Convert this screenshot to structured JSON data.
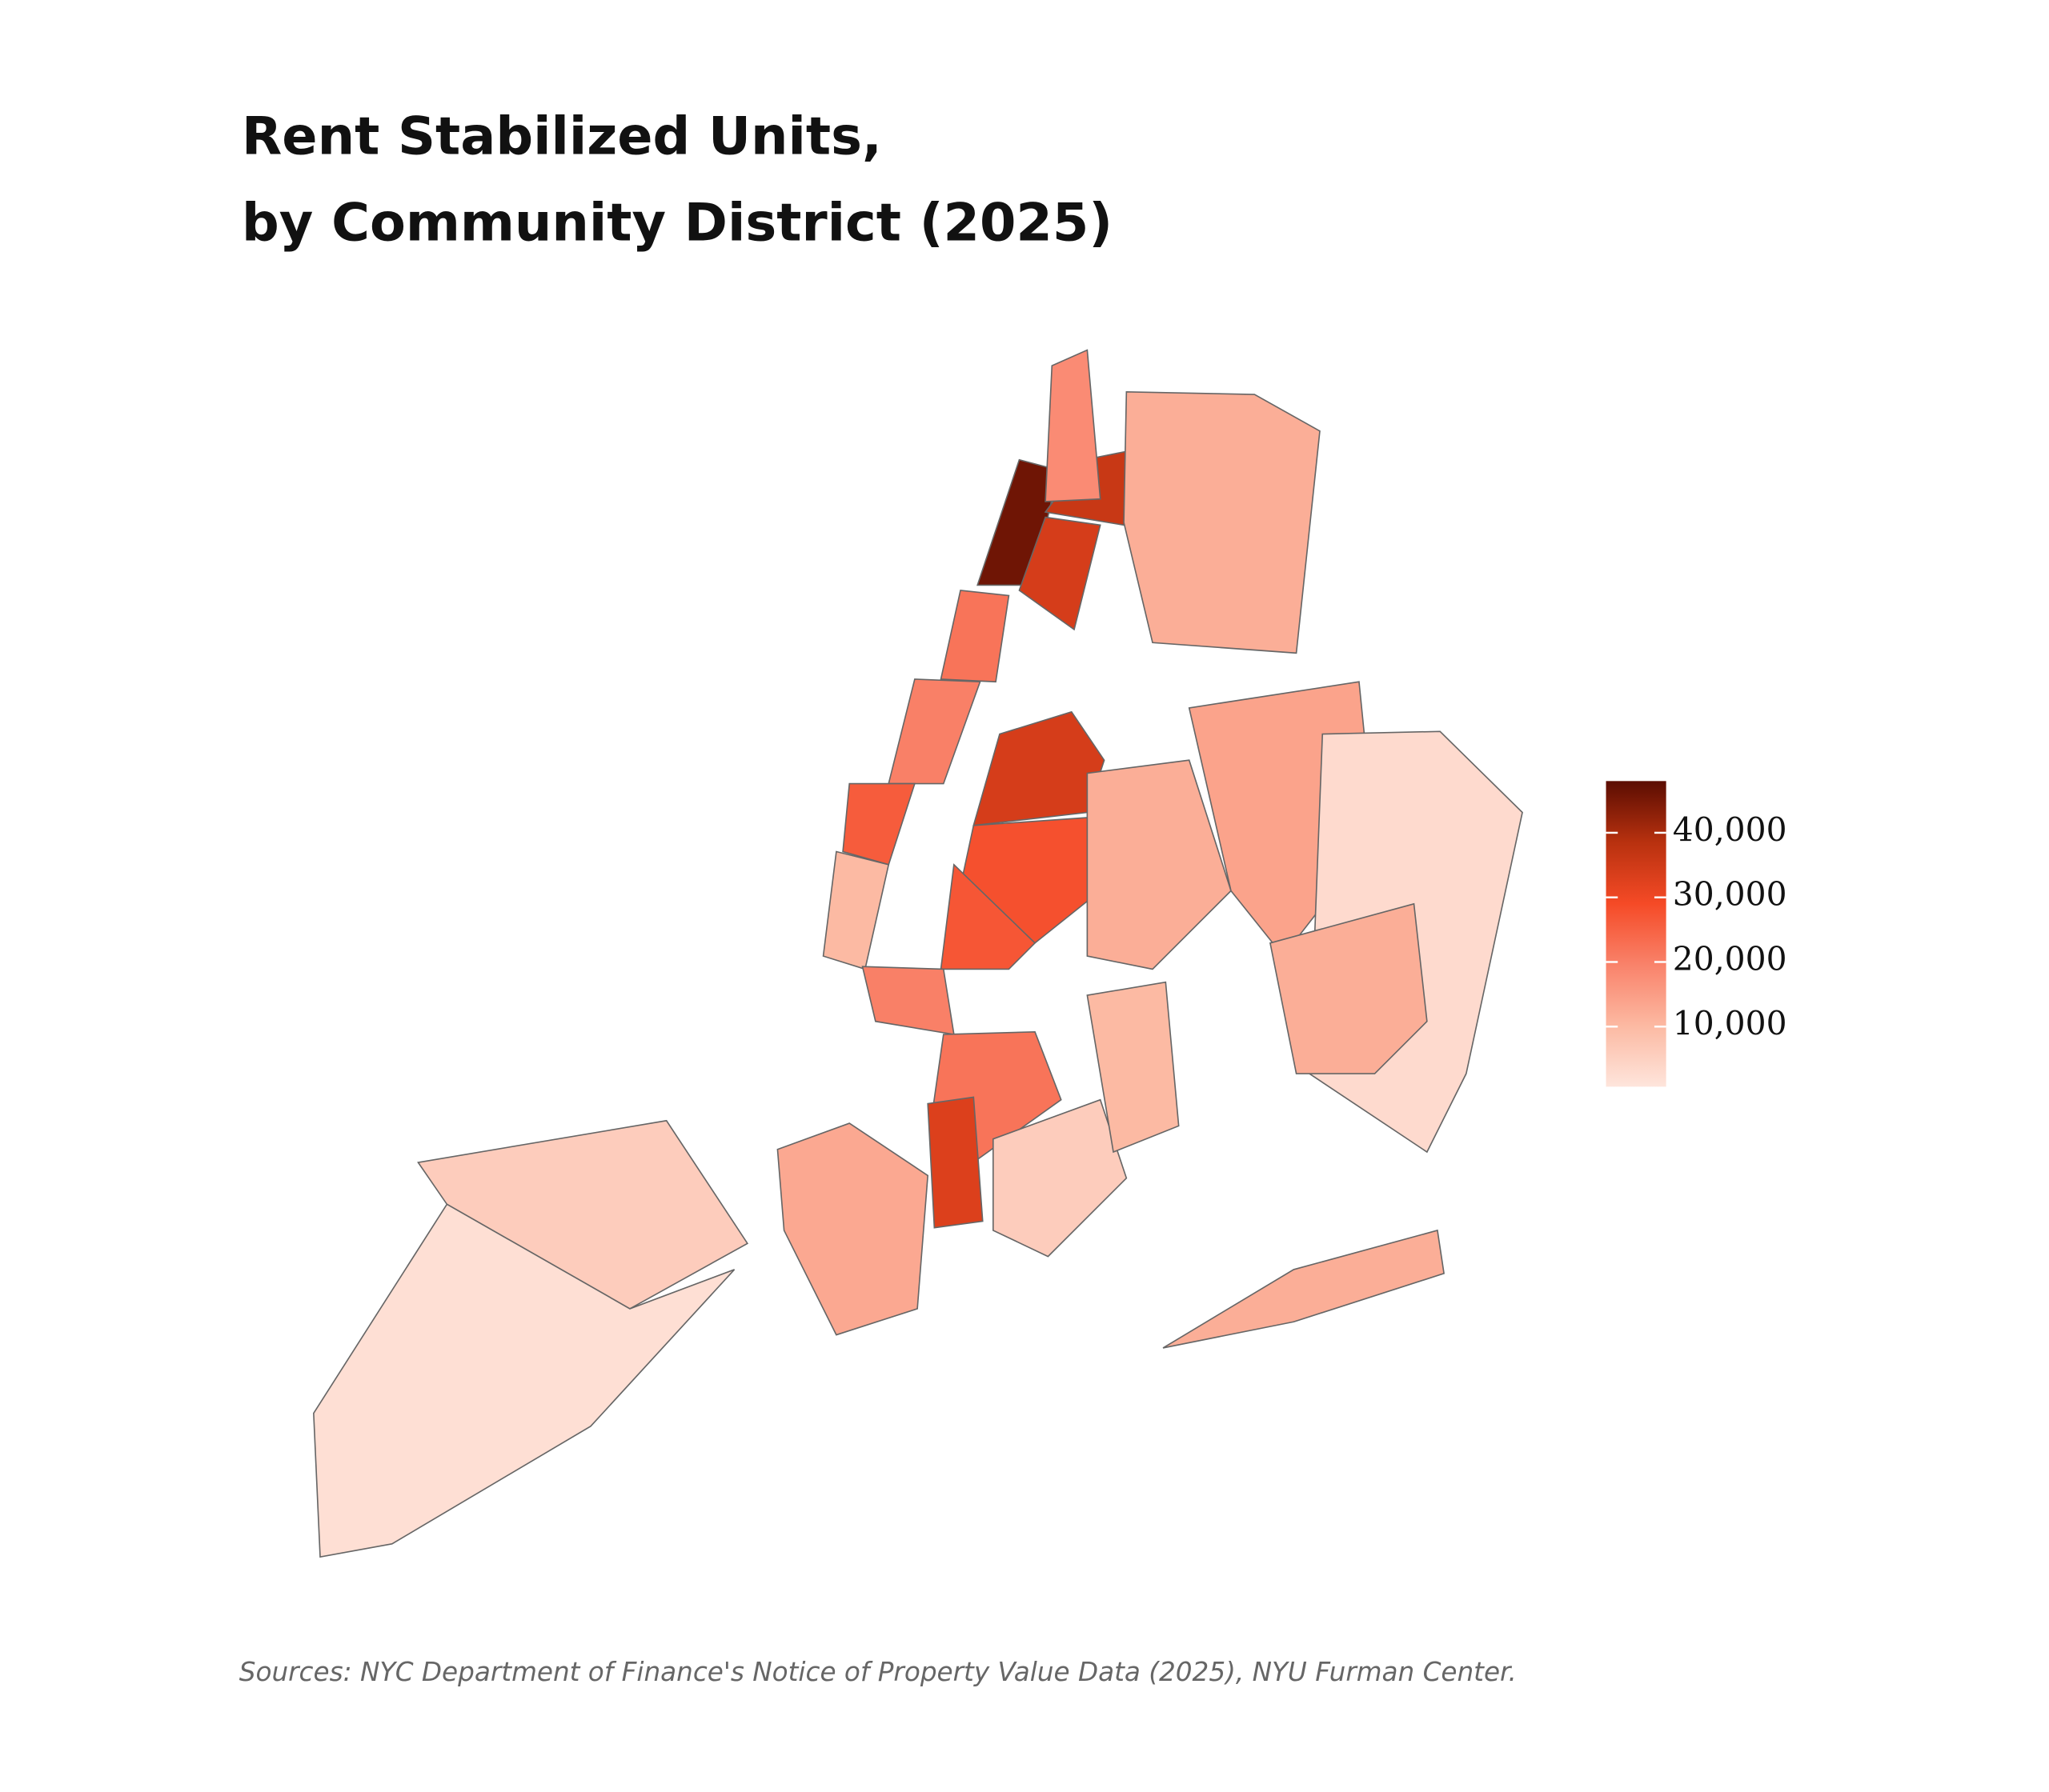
{
  "chart_data": {
    "type": "choropleth",
    "title": [
      "Rent Stabilized Units,",
      "by Community District (2025)"
    ],
    "source": "Sources: NYC Department of Finance's Notice of Property Value Data (2025), NYU Furman Center.",
    "values": [
      46000,
      36000,
      34000,
      12000,
      18000,
      22000,
      20000,
      26000,
      10000,
      34000,
      28000,
      27000,
      20000,
      22000,
      33000,
      13000,
      6000,
      12000,
      14000,
      3000,
      12000,
      10000,
      12000,
      6000,
      2000
    ],
    "colorscale": [
      "#fee5dc",
      "#fcb9a2",
      "#f9826a",
      "#f54a26",
      "#b8310f",
      "#5b0d02"
    ],
    "clim": [
      700,
      48000
    ],
    "cticks": [
      {
        "value": 10000,
        "label": "10,000"
      },
      {
        "value": 20000,
        "label": "20,000"
      },
      {
        "value": 30000,
        "label": "30,000"
      },
      {
        "value": 40000,
        "label": "40,000"
      }
    ],
    "outline": "#666666"
  }
}
